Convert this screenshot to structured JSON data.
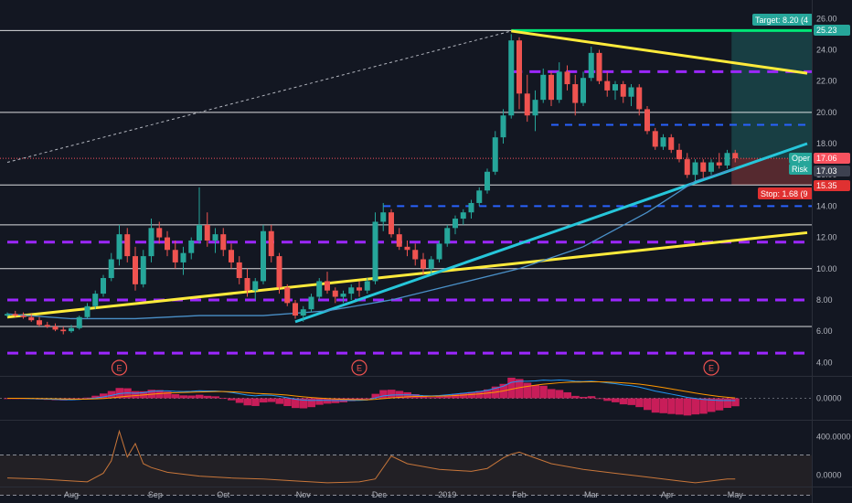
{
  "chart_data": [
    {
      "type": "candlestick",
      "panel": "price",
      "y_axis_labels": [
        "26.00",
        "24.00",
        "22.00",
        "20.00",
        "18.00",
        "16.00",
        "14.00",
        "12.00",
        "10.00",
        "8.00",
        "6.00",
        "4.00"
      ],
      "ylim": [
        3.2,
        26.6
      ],
      "x_axis_labels": [
        "Aug",
        "Sep",
        "Oct",
        "Nov",
        "Dec",
        "2019",
        "Feb",
        "Mar",
        "Apr",
        "May"
      ],
      "candles": [
        [
          0,
          7.0,
          7.2,
          6.9,
          7.1
        ],
        [
          1,
          7.1,
          7.3,
          6.9,
          7.0
        ],
        [
          2,
          7.0,
          7.2,
          6.8,
          6.9
        ],
        [
          3,
          6.9,
          7.1,
          6.6,
          6.7
        ],
        [
          4,
          6.7,
          6.9,
          6.3,
          6.4
        ],
        [
          5,
          6.4,
          6.6,
          6.2,
          6.3
        ],
        [
          6,
          6.3,
          6.5,
          6.0,
          6.1
        ],
        [
          7,
          6.1,
          6.3,
          5.8,
          6.0
        ],
        [
          8,
          6.0,
          6.4,
          5.9,
          6.2
        ],
        [
          9,
          6.2,
          7.0,
          6.1,
          6.9
        ],
        [
          10,
          6.9,
          7.8,
          6.8,
          7.6
        ],
        [
          11,
          7.6,
          8.6,
          7.4,
          8.4
        ],
        [
          12,
          8.4,
          9.6,
          8.2,
          9.4
        ],
        [
          13,
          9.4,
          11.0,
          9.2,
          10.6
        ],
        [
          14,
          10.6,
          12.8,
          10.2,
          12.2
        ],
        [
          15,
          12.2,
          12.6,
          10.4,
          10.8
        ],
        [
          16,
          10.8,
          11.4,
          8.6,
          9.0
        ],
        [
          17,
          9.0,
          11.2,
          8.8,
          10.8
        ],
        [
          18,
          10.8,
          13.2,
          10.4,
          12.6
        ],
        [
          19,
          12.6,
          13.0,
          11.6,
          12.0
        ],
        [
          20,
          12.0,
          12.4,
          10.8,
          11.2
        ],
        [
          21,
          11.2,
          11.8,
          10.0,
          10.4
        ],
        [
          22,
          10.4,
          11.4,
          9.6,
          11.0
        ],
        [
          23,
          11.0,
          12.0,
          10.6,
          11.8
        ],
        [
          24,
          11.8,
          15.2,
          11.6,
          12.8
        ],
        [
          25,
          12.8,
          13.6,
          11.4,
          11.8
        ],
        [
          26,
          11.8,
          12.6,
          11.0,
          12.2
        ],
        [
          27,
          12.2,
          12.6,
          10.8,
          11.2
        ],
        [
          28,
          11.2,
          11.6,
          10.0,
          10.4
        ],
        [
          29,
          10.4,
          10.8,
          9.0,
          9.4
        ],
        [
          30,
          9.4,
          10.0,
          8.2,
          8.6
        ],
        [
          31,
          8.6,
          9.4,
          8.0,
          9.2
        ],
        [
          32,
          9.2,
          12.8,
          9.0,
          12.4
        ],
        [
          33,
          12.4,
          12.8,
          10.4,
          10.8
        ],
        [
          34,
          10.8,
          11.0,
          8.4,
          8.8
        ],
        [
          35,
          8.8,
          9.0,
          7.6,
          7.8
        ],
        [
          36,
          7.8,
          8.0,
          6.8,
          7.0
        ],
        [
          37,
          7.0,
          7.6,
          6.6,
          7.4
        ],
        [
          38,
          7.4,
          8.4,
          7.2,
          8.2
        ],
        [
          39,
          8.2,
          9.4,
          8.0,
          9.2
        ],
        [
          40,
          9.2,
          9.8,
          8.4,
          8.6
        ],
        [
          41,
          8.6,
          8.8,
          7.8,
          8.2
        ],
        [
          42,
          8.2,
          8.6,
          7.8,
          8.4
        ],
        [
          43,
          8.4,
          9.0,
          8.0,
          8.8
        ],
        [
          44,
          8.8,
          9.2,
          8.2,
          8.6
        ],
        [
          45,
          8.6,
          9.4,
          8.4,
          9.2
        ],
        [
          46,
          9.2,
          13.6,
          9.0,
          13.0
        ],
        [
          47,
          13.0,
          14.2,
          12.4,
          13.6
        ],
        [
          48,
          13.6,
          13.8,
          12.0,
          12.2
        ],
        [
          49,
          12.2,
          12.6,
          11.2,
          11.4
        ],
        [
          50,
          11.4,
          11.8,
          10.8,
          11.2
        ],
        [
          51,
          11.2,
          11.6,
          10.2,
          10.6
        ],
        [
          52,
          10.6,
          11.0,
          9.6,
          10.0
        ],
        [
          53,
          10.0,
          10.8,
          9.6,
          10.6
        ],
        [
          54,
          10.6,
          11.8,
          10.4,
          11.6
        ],
        [
          55,
          11.6,
          12.8,
          11.4,
          12.6
        ],
        [
          56,
          12.6,
          13.4,
          12.2,
          13.2
        ],
        [
          57,
          13.2,
          13.8,
          12.8,
          13.6
        ],
        [
          58,
          13.6,
          14.4,
          13.2,
          14.2
        ],
        [
          59,
          14.2,
          15.2,
          14.0,
          15.0
        ],
        [
          60,
          15.0,
          16.4,
          14.8,
          16.2
        ],
        [
          61,
          16.2,
          18.8,
          16.0,
          18.4
        ],
        [
          62,
          18.4,
          20.2,
          18.0,
          19.8
        ],
        [
          63,
          19.8,
          25.0,
          19.6,
          24.6
        ],
        [
          64,
          24.6,
          24.8,
          20.2,
          21.2
        ],
        [
          65,
          21.2,
          22.4,
          19.4,
          19.8
        ],
        [
          66,
          19.8,
          21.4,
          18.8,
          20.8
        ],
        [
          67,
          20.8,
          22.8,
          20.6,
          22.4
        ],
        [
          68,
          22.4,
          22.6,
          20.4,
          20.8
        ],
        [
          69,
          20.8,
          23.2,
          20.6,
          22.6
        ],
        [
          70,
          22.6,
          23.0,
          21.4,
          21.8
        ],
        [
          71,
          21.8,
          22.4,
          19.8,
          20.6
        ],
        [
          72,
          20.6,
          22.6,
          20.4,
          22.2
        ],
        [
          73,
          22.2,
          24.2,
          22.0,
          23.8
        ],
        [
          74,
          23.8,
          24.0,
          21.8,
          22.0
        ],
        [
          75,
          22.0,
          22.6,
          21.0,
          21.4
        ],
        [
          76,
          21.4,
          22.0,
          20.8,
          21.8
        ],
        [
          77,
          21.8,
          22.0,
          20.6,
          21.0
        ],
        [
          78,
          21.0,
          21.8,
          20.4,
          21.6
        ],
        [
          79,
          21.6,
          21.8,
          19.8,
          20.2
        ],
        [
          80,
          20.2,
          20.4,
          18.6,
          18.8
        ],
        [
          81,
          18.8,
          19.0,
          17.6,
          17.8
        ],
        [
          82,
          17.8,
          18.6,
          17.6,
          18.4
        ],
        [
          83,
          18.4,
          18.6,
          17.4,
          17.6
        ],
        [
          84,
          17.6,
          18.0,
          16.8,
          17.0
        ],
        [
          85,
          17.0,
          17.4,
          15.8,
          16.0
        ],
        [
          86,
          16.0,
          17.0,
          15.6,
          16.8
        ],
        [
          87,
          16.8,
          17.0,
          15.8,
          16.2
        ],
        [
          88,
          16.2,
          17.0,
          16.0,
          16.8
        ],
        [
          89,
          16.8,
          17.4,
          16.4,
          16.6
        ],
        [
          90,
          16.6,
          17.6,
          16.4,
          17.4
        ],
        [
          91,
          17.4,
          17.6,
          16.8,
          17.06
        ]
      ],
      "moving_average": [
        [
          0,
          7.1
        ],
        [
          8,
          6.8
        ],
        [
          16,
          6.8
        ],
        [
          24,
          7.0
        ],
        [
          32,
          7.0
        ],
        [
          40,
          7.3
        ],
        [
          48,
          8.0
        ],
        [
          56,
          9.0
        ],
        [
          64,
          10.0
        ],
        [
          72,
          11.4
        ],
        [
          80,
          13.6
        ],
        [
          86,
          15.6
        ],
        [
          91,
          16.4
        ]
      ],
      "horizontal_lines": [
        {
          "y": 25.23,
          "color": "#ffffff",
          "style": "solid"
        },
        {
          "y": 20.0,
          "color": "#ffffff",
          "style": "solid"
        },
        {
          "y": 15.35,
          "color": "#ffffff",
          "style": "solid"
        },
        {
          "y": 12.8,
          "color": "#ffffff",
          "style": "solid"
        },
        {
          "y": 10.0,
          "color": "#ffffff",
          "style": "solid"
        },
        {
          "y": 6.3,
          "color": "#ffffff",
          "style": "solid"
        },
        {
          "y": 17.06,
          "color": "#f7525f",
          "style": "dotted"
        }
      ],
      "dashed_levels": [
        {
          "y": 22.6,
          "color": "#9c27ff",
          "x_from": 63
        },
        {
          "y": 11.7,
          "color": "#9c27ff",
          "x_from": 0
        },
        {
          "y": 8.0,
          "color": "#9c27ff",
          "x_from": 0
        },
        {
          "y": 4.6,
          "color": "#9c27ff",
          "x_from": 0
        },
        {
          "y": 19.2,
          "color": "#2962ff",
          "x_from": 68
        },
        {
          "y": 14.0,
          "color": "#2962ff",
          "x_from": 47
        }
      ],
      "trendlines": [
        {
          "from": [
            0,
            6.9
          ],
          "to": [
            100,
            12.3
          ],
          "color": "#ffeb3b"
        },
        {
          "from": [
            63,
            25.2
          ],
          "to": [
            100,
            22.5
          ],
          "color": "#ffeb3b"
        },
        {
          "from": [
            36,
            6.6
          ],
          "to": [
            100,
            18.0
          ],
          "color": "#26c6da"
        },
        {
          "from": [
            0,
            16.8
          ],
          "to": [
            63,
            25.2
          ],
          "color": "#b2b5be",
          "style": "dashed"
        }
      ],
      "target_line": {
        "y": 25.23,
        "color": "#00e676",
        "x_from": 63
      },
      "position": {
        "entry": 17.06,
        "target": 25.23,
        "stop": 15.35,
        "x_from": 91
      },
      "earnings_markers": [
        14,
        44,
        88
      ],
      "earnings_label": "E",
      "price_tags": [
        {
          "text": "Target: 8.20 (4",
          "color": "#26a69a",
          "text_color": "#ffffff"
        },
        {
          "text": "25.23",
          "color": "#26a69a",
          "text_color": "#ffffff"
        },
        {
          "text": "Oper",
          "color": "#26a69a",
          "text_color": "#ffffff"
        },
        {
          "text": "Risk",
          "color": "#26a69a",
          "text_color": "#ffffff"
        },
        {
          "text": "17.06",
          "color": "#f7525f",
          "text_color": "#ffffff"
        },
        {
          "text": "17.03",
          "color": "#3d4150",
          "text_color": "#ffffff"
        },
        {
          "text": "15.35",
          "color": "#e03131",
          "text_color": "#ffffff"
        },
        {
          "text": "Stop: 1.68 (9",
          "color": "#e03131",
          "text_color": "#ffffff"
        }
      ]
    },
    {
      "type": "macd",
      "panel": "indicator-1",
      "y_axis_labels": [
        "0.0000"
      ],
      "ylim": [
        -1.2,
        1.2
      ]
    },
    {
      "type": "line",
      "panel": "indicator-2",
      "y_axis_labels": [
        "400.0000",
        "0.0000"
      ],
      "ylim": [
        -100,
        560
      ],
      "x": [
        0,
        4,
        8,
        10,
        12,
        13,
        14,
        15,
        16,
        17,
        18,
        20,
        24,
        28,
        32,
        36,
        40,
        44,
        46,
        48,
        50,
        54,
        58,
        60,
        62,
        63,
        64,
        66,
        68,
        70,
        72,
        76,
        80,
        84,
        86,
        88,
        90,
        91
      ],
      "values": [
        -30,
        -40,
        -60,
        -70,
        20,
        150,
        460,
        190,
        330,
        120,
        80,
        30,
        -10,
        -30,
        -40,
        -60,
        -80,
        -70,
        -40,
        200,
        120,
        60,
        40,
        70,
        180,
        220,
        240,
        180,
        120,
        90,
        60,
        20,
        -20,
        -60,
        -80,
        -60,
        -40,
        -40
      ],
      "bands": [
        210,
        -210
      ]
    }
  ]
}
